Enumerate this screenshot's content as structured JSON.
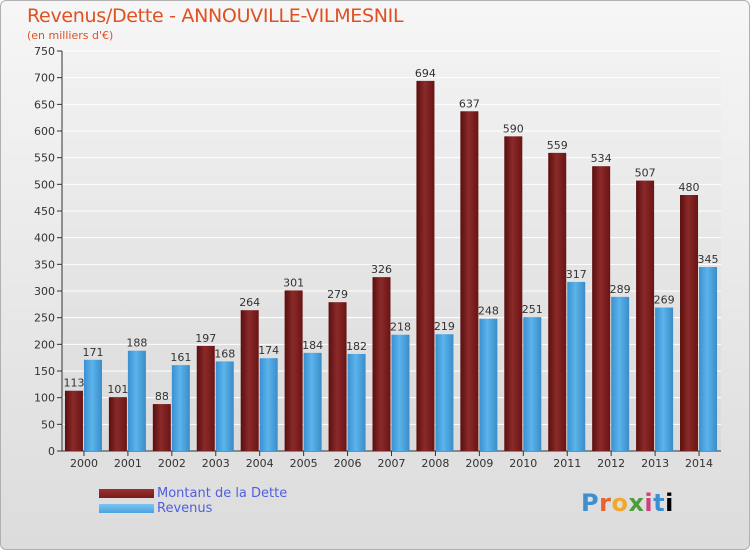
{
  "chart_data": {
    "type": "bar",
    "title": "Revenus/Dette - ANNOUVILLE-VILMESNIL",
    "subtitle": "(en milliers d'€)",
    "categories": [
      "2000",
      "2001",
      "2002",
      "2003",
      "2004",
      "2005",
      "2006",
      "2007",
      "2008",
      "2009",
      "2010",
      "2011",
      "2012",
      "2013",
      "2014"
    ],
    "series": [
      {
        "name": "Montant de la Dette",
        "color": "#7a1c1c",
        "values": [
          113,
          101,
          88,
          197,
          264,
          301,
          279,
          326,
          694,
          637,
          590,
          559,
          534,
          507,
          480
        ]
      },
      {
        "name": "Revenus",
        "color": "#4aa3e0",
        "values": [
          171,
          188,
          161,
          168,
          174,
          184,
          182,
          218,
          219,
          248,
          251,
          317,
          289,
          269,
          345
        ]
      }
    ],
    "yticks": [
      0,
      50,
      100,
      150,
      200,
      250,
      300,
      350,
      400,
      450,
      500,
      550,
      600,
      650,
      700,
      750
    ],
    "ylim": [
      0,
      750
    ],
    "grid": true,
    "legend": "bottom-left"
  },
  "logo": {
    "letters": [
      "P",
      "r",
      "o",
      "x",
      "i",
      "t",
      "i"
    ]
  }
}
